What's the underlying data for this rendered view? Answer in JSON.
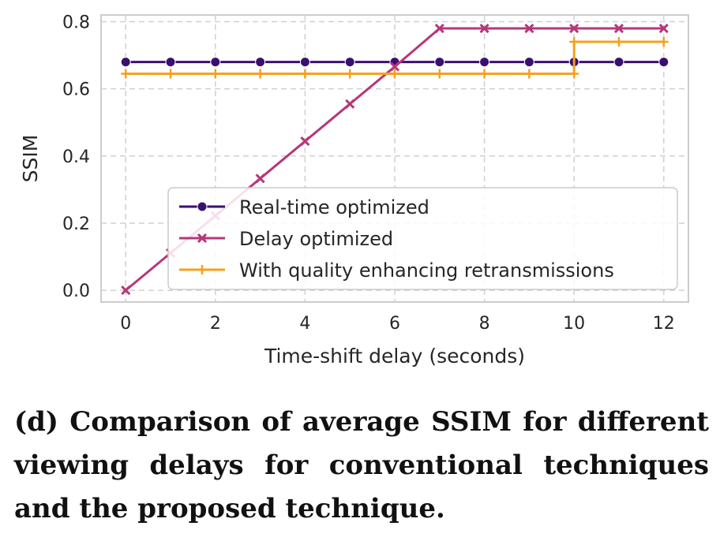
{
  "chart_data": {
    "type": "line",
    "xlabel": "Time-shift delay (seconds)",
    "ylabel": "SSIM",
    "xlim": [
      -0.55,
      12.55
    ],
    "ylim": [
      -0.035,
      0.82
    ],
    "xticks": [
      0,
      2,
      4,
      6,
      8,
      10,
      12
    ],
    "xtick_labels": [
      "0",
      "2",
      "4",
      "6",
      "8",
      "10",
      "12"
    ],
    "yticks": [
      0.0,
      0.2,
      0.4,
      0.6,
      0.8
    ],
    "ytick_labels": [
      "0.0",
      "0.2",
      "0.4",
      "0.6",
      "0.8"
    ],
    "grid": true,
    "legend_position": "lower-right",
    "series": [
      {
        "name": "Real-time optimized",
        "color": "#3b0f70",
        "marker": "circle",
        "x": [
          0,
          1,
          2,
          3,
          4,
          5,
          6,
          7,
          8,
          9,
          10,
          11,
          12
        ],
        "y": [
          0.68,
          0.68,
          0.68,
          0.68,
          0.68,
          0.68,
          0.68,
          0.68,
          0.68,
          0.68,
          0.68,
          0.68,
          0.68
        ]
      },
      {
        "name": "Delay optimized",
        "color": "#b73779",
        "marker": "x",
        "x": [
          0,
          1,
          2,
          3,
          4,
          5,
          6,
          7,
          8,
          9,
          10,
          11,
          12
        ],
        "y": [
          0.0,
          0.111,
          0.222,
          0.333,
          0.444,
          0.555,
          0.666,
          0.78,
          0.78,
          0.78,
          0.78,
          0.78,
          0.78
        ]
      },
      {
        "name": "With quality enhancing retransmissions",
        "color": "#f5a11c",
        "marker": "plus",
        "x": [
          0,
          1,
          2,
          3,
          4,
          5,
          6,
          7,
          8,
          9,
          10,
          10,
          11,
          12
        ],
        "y": [
          0.645,
          0.645,
          0.645,
          0.645,
          0.645,
          0.645,
          0.645,
          0.645,
          0.645,
          0.645,
          0.645,
          0.74,
          0.74,
          0.74
        ]
      }
    ]
  },
  "caption": "(d) Comparison of average SSIM for different viewing delays for conventional techniques and the proposed technique."
}
